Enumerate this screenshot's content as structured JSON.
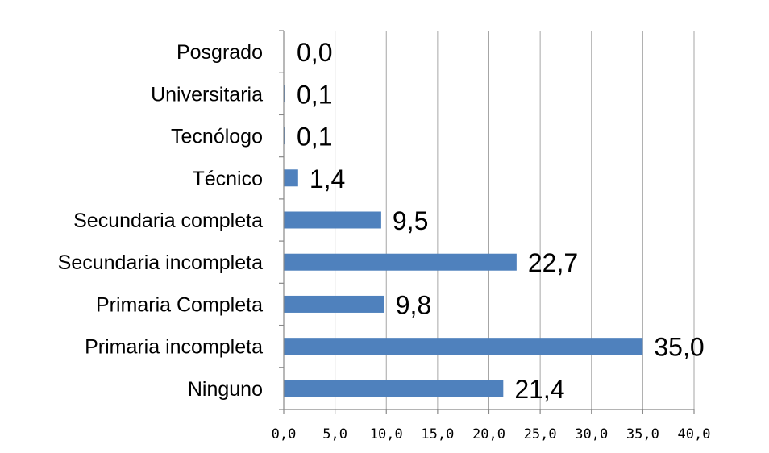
{
  "chart_data": {
    "type": "bar",
    "orientation": "horizontal",
    "categories": [
      "Posgrado",
      "Universitaria",
      "Tecnólogo",
      "Técnico",
      "Secundaria completa",
      "Secundaria incompleta",
      "Primaria Completa",
      "Primaria incompleta",
      "Ninguno"
    ],
    "values": [
      0.0,
      0.1,
      0.1,
      1.4,
      9.5,
      22.7,
      9.8,
      35.0,
      21.4
    ],
    "data_labels": [
      "0,0",
      "0,1",
      "0,1",
      "1,4",
      "9,5",
      "22,7",
      "9,8",
      "35,0",
      "21,4"
    ],
    "x_ticks": [
      "0,0",
      "5,0",
      "10,0",
      "15,0",
      "20,0",
      "25,0",
      "30,0",
      "35,0",
      "40,0"
    ],
    "xlim": [
      0,
      40
    ],
    "grid": "vertical",
    "legend": "none",
    "bar_color": "#4f81bd",
    "title": "",
    "xlabel": "",
    "ylabel": ""
  }
}
